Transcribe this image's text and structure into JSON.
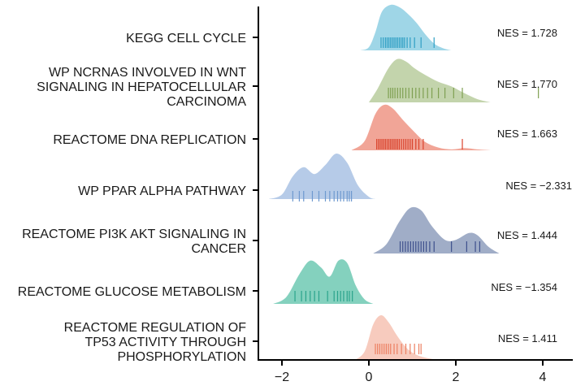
{
  "chart_data": {
    "type": "ridgeline",
    "title": "",
    "xlabel": "",
    "ylabel": "",
    "xlim": [
      -2.6,
      4.8
    ],
    "xticks": [
      {
        "value": -2,
        "label": "−2"
      },
      {
        "value": 0,
        "label": "0"
      },
      {
        "value": 2,
        "label": "2"
      },
      {
        "value": 4,
        "label": "4"
      }
    ],
    "series": [
      {
        "name": "KEGG CELL CYCLE",
        "label_lines": [
          "KEGG CELL CYCLE"
        ],
        "nes_text": "NES = 1.728",
        "color": "#8ecfe3",
        "rug_color": "#2f9fc4",
        "density": [
          [
            -0.2,
            0
          ],
          [
            0,
            0.07
          ],
          [
            0.15,
            0.4
          ],
          [
            0.3,
            0.85
          ],
          [
            0.5,
            1.0
          ],
          [
            0.7,
            0.95
          ],
          [
            0.9,
            0.8
          ],
          [
            1.1,
            0.6
          ],
          [
            1.3,
            0.35
          ],
          [
            1.5,
            0.15
          ],
          [
            1.7,
            0.05
          ],
          [
            1.9,
            0
          ]
        ],
        "rug": [
          0.28,
          0.33,
          0.38,
          0.42,
          0.46,
          0.5,
          0.54,
          0.58,
          0.62,
          0.66,
          0.7,
          0.74,
          0.78,
          0.82,
          0.88,
          0.95,
          1.05,
          1.2,
          1.5
        ]
      },
      {
        "name": "WP NCRNAS INVOLVED IN WNT SIGNALING IN HEPATOCELLULAR CARCINOMA",
        "label_lines": [
          "WP NCRNAS INVOLVED IN WNT",
          "SIGNALING IN HEPATOCELLULAR",
          "CARCINOMA"
        ],
        "nes_text": "NES = 1.770",
        "color": "#b9cc9e",
        "rug_color": "#7fa052",
        "density": [
          [
            0,
            0
          ],
          [
            0.2,
            0.3
          ],
          [
            0.45,
            0.75
          ],
          [
            0.65,
            0.95
          ],
          [
            0.85,
            0.9
          ],
          [
            1.05,
            0.75
          ],
          [
            1.3,
            0.6
          ],
          [
            1.6,
            0.45
          ],
          [
            1.9,
            0.35
          ],
          [
            2.2,
            0.2
          ],
          [
            2.5,
            0.07
          ],
          [
            2.8,
            0
          ]
        ],
        "rug": [
          0.45,
          0.5,
          0.55,
          0.6,
          0.66,
          0.72,
          0.78,
          0.85,
          0.92,
          1.0,
          1.08,
          1.16,
          1.25,
          1.35,
          1.45,
          1.6,
          1.75,
          1.95,
          2.15,
          3.9
        ]
      },
      {
        "name": "REACTOME DNA REPLICATION",
        "label_lines": [
          "REACTOME DNA REPLICATION"
        ],
        "nes_text": "NES = 1.663",
        "color": "#ee9585",
        "rug_color": "#d9432c",
        "density": [
          [
            -0.4,
            0
          ],
          [
            -0.1,
            0.2
          ],
          [
            0.15,
            0.8
          ],
          [
            0.35,
            1.0
          ],
          [
            0.55,
            0.92
          ],
          [
            0.8,
            0.65
          ],
          [
            1.05,
            0.4
          ],
          [
            1.3,
            0.18
          ],
          [
            1.6,
            0.06
          ],
          [
            1.9,
            0.02
          ],
          [
            2.2,
            0.05
          ],
          [
            2.5,
            0.02
          ],
          [
            2.8,
            0
          ]
        ],
        "rug": [
          0.18,
          0.22,
          0.26,
          0.3,
          0.34,
          0.38,
          0.42,
          0.46,
          0.5,
          0.54,
          0.58,
          0.62,
          0.66,
          0.7,
          0.75,
          0.8,
          0.85,
          0.9,
          0.95,
          1.0,
          1.08,
          1.15,
          1.25,
          2.15
        ]
      },
      {
        "name": "WP PPAR ALPHA PATHWAY",
        "label_lines": [
          "WP PPAR ALPHA PATHWAY"
        ],
        "nes_text": "NES = −2.331",
        "color": "#a9c2e4",
        "rug_color": "#6e99cf",
        "density": [
          [
            -2.3,
            0
          ],
          [
            -2.0,
            0.1
          ],
          [
            -1.75,
            0.5
          ],
          [
            -1.5,
            0.7
          ],
          [
            -1.25,
            0.55
          ],
          [
            -1.0,
            0.75
          ],
          [
            -0.75,
            1.0
          ],
          [
            -0.5,
            0.8
          ],
          [
            -0.25,
            0.3
          ],
          [
            0,
            0.05
          ],
          [
            0.15,
            0
          ]
        ],
        "rug": [
          -1.75,
          -1.6,
          -1.5,
          -1.3,
          -1.15,
          -1.0,
          -0.9,
          -0.8,
          -0.72,
          -0.65,
          -0.58,
          -0.5,
          -0.45,
          -0.4
        ]
      },
      {
        "name": "REACTOME PI3K AKT SIGNALING IN CANCER",
        "label_lines": [
          "REACTOME PI3K AKT SIGNALING IN",
          "CANCER"
        ],
        "nes_text": "NES = 1.444",
        "color": "#8f9fbd",
        "rug_color": "#3d4f8c",
        "density": [
          [
            0.1,
            0
          ],
          [
            0.4,
            0.2
          ],
          [
            0.7,
            0.7
          ],
          [
            0.95,
            1.0
          ],
          [
            1.2,
            0.95
          ],
          [
            1.45,
            0.6
          ],
          [
            1.75,
            0.3
          ],
          [
            2.0,
            0.3
          ],
          [
            2.3,
            0.45
          ],
          [
            2.5,
            0.4
          ],
          [
            2.75,
            0.15
          ],
          [
            3.0,
            0
          ]
        ],
        "rug": [
          0.72,
          0.78,
          0.84,
          0.9,
          0.96,
          1.02,
          1.08,
          1.14,
          1.2,
          1.26,
          1.32,
          1.4,
          1.5,
          1.9,
          2.25,
          2.45,
          2.55
        ]
      },
      {
        "name": "REACTOME GLUCOSE METABOLISM",
        "label_lines": [
          "REACTOME GLUCOSE METABOLISM"
        ],
        "nes_text": "NES = −1.354",
        "color": "#6ec9b3",
        "rug_color": "#2aa38b",
        "density": [
          [
            -2.2,
            0
          ],
          [
            -1.9,
            0.15
          ],
          [
            -1.6,
            0.65
          ],
          [
            -1.35,
            0.95
          ],
          [
            -1.1,
            0.8
          ],
          [
            -0.9,
            0.6
          ],
          [
            -0.7,
            0.95
          ],
          [
            -0.5,
            0.9
          ],
          [
            -0.3,
            0.4
          ],
          [
            -0.1,
            0.1
          ],
          [
            0.1,
            0
          ]
        ],
        "rug": [
          -1.7,
          -1.55,
          -1.45,
          -1.35,
          -1.25,
          -1.15,
          -0.95,
          -0.8,
          -0.72,
          -0.65,
          -0.58,
          -0.5,
          -0.45,
          -0.38
        ]
      },
      {
        "name": "REACTOME REGULATION OF TP53 ACTIVITY THROUGH PHOSPHORYLATION",
        "label_lines": [
          "REACTOME REGULATION OF",
          "TP53 ACTIVITY THROUGH",
          "PHOSPHORYLATION"
        ],
        "nes_text": "NES = 1.411",
        "color": "#f6c2b3",
        "rug_color": "#ec8062",
        "density": [
          [
            -0.35,
            0
          ],
          [
            -0.1,
            0.2
          ],
          [
            0.1,
            0.8
          ],
          [
            0.28,
            1.0
          ],
          [
            0.45,
            0.85
          ],
          [
            0.65,
            0.55
          ],
          [
            0.85,
            0.3
          ],
          [
            1.05,
            0.15
          ],
          [
            1.3,
            0.07
          ],
          [
            1.6,
            0.02
          ],
          [
            1.8,
            0
          ]
        ],
        "rug": [
          0.15,
          0.2,
          0.25,
          0.3,
          0.35,
          0.4,
          0.45,
          0.5,
          0.58,
          0.65,
          0.75,
          0.85,
          0.95,
          1.05,
          1.15,
          1.2
        ]
      }
    ]
  }
}
